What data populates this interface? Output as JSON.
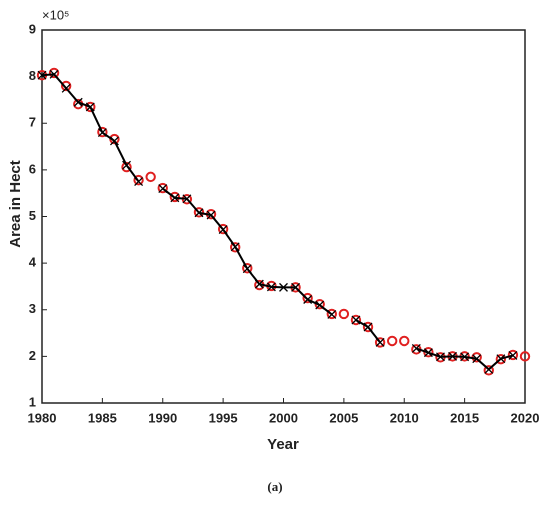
{
  "chart_data": {
    "type": "line",
    "xlabel": "Year",
    "ylabel": "Area in Hect",
    "y_exponent": "×10⁵",
    "caption": "(a)",
    "x": [
      1980,
      1981,
      1982,
      1983,
      1984,
      1985,
      1986,
      1987,
      1988,
      1989,
      1990,
      1991,
      1992,
      1993,
      1994,
      1995,
      1996,
      1997,
      1998,
      1999,
      2000,
      2001,
      2002,
      2003,
      2004,
      2005,
      2006,
      2007,
      2008,
      2009,
      2010,
      2011,
      2012,
      2013,
      2014,
      2015,
      2016,
      2017,
      2018,
      2019,
      2020
    ],
    "series": [
      {
        "color": "#e02020",
        "marker": "circle",
        "values": [
          8.03,
          8.08,
          7.8,
          7.41,
          7.35,
          6.81,
          6.66,
          6.06,
          5.78,
          5.85,
          5.61,
          5.42,
          5.37,
          5.09,
          5.05,
          4.73,
          4.34,
          3.89,
          3.53,
          3.51,
          null,
          3.48,
          3.25,
          3.12,
          2.91,
          2.91,
          2.78,
          2.63,
          2.3,
          2.33,
          2.33,
          2.15,
          2.09,
          1.98,
          2.0,
          2.0,
          1.98,
          1.7,
          1.94,
          2.03,
          2.0
        ]
      },
      {
        "color": "#000000",
        "marker": "x",
        "values": [
          8.03,
          8.05,
          7.75,
          7.45,
          7.35,
          6.8,
          6.62,
          6.1,
          5.75,
          null,
          5.6,
          5.4,
          5.38,
          5.08,
          5.03,
          4.72,
          4.35,
          3.88,
          3.55,
          3.49,
          3.48,
          3.48,
          3.22,
          3.1,
          2.9,
          null,
          2.78,
          2.63,
          2.3,
          null,
          null,
          2.17,
          2.08,
          1.99,
          2.0,
          1.99,
          1.95,
          1.72,
          1.95,
          2.02,
          null
        ]
      }
    ],
    "xlim": [
      1980,
      2020
    ],
    "xticks": [
      1980,
      1985,
      1990,
      1995,
      2000,
      2005,
      2010,
      2015,
      2020
    ],
    "ylim": [
      1,
      9
    ],
    "yticks": [
      1,
      2,
      3,
      4,
      5,
      6,
      7,
      8,
      9
    ]
  }
}
